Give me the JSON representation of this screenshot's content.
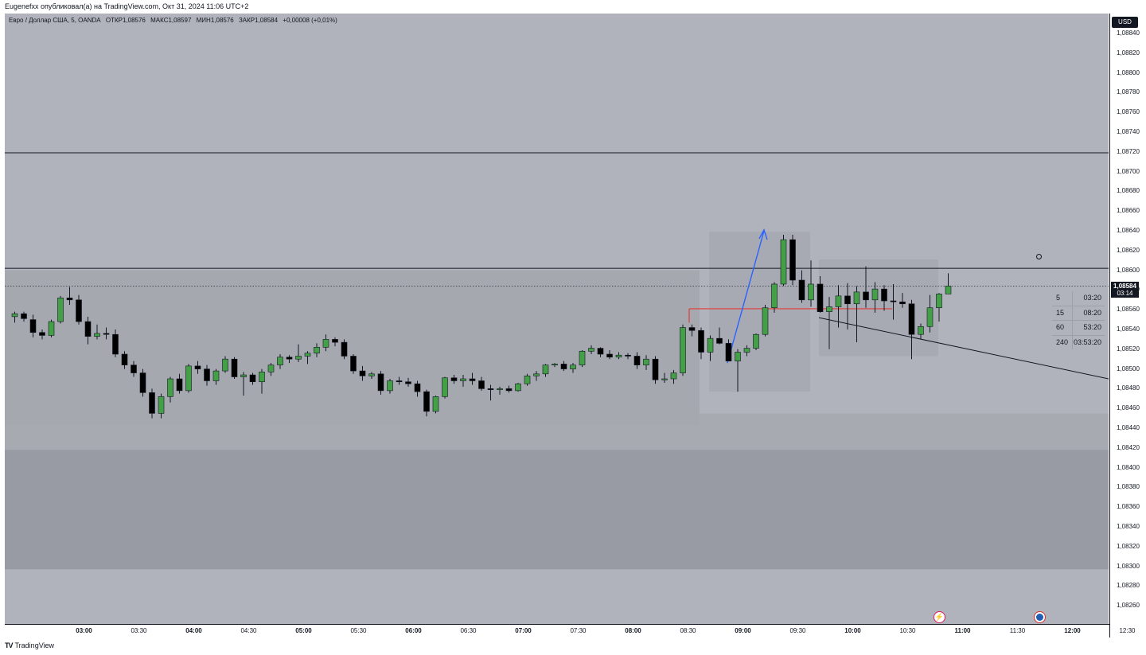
{
  "header": {
    "published": "Eugenefxx опубликовал(а) на TradingView.com, Окт 31, 2024 11:06 UTC+2"
  },
  "legend": {
    "symbol": "Евро / Доллар США, 5, OANDA",
    "open": "ОТКР1,08576",
    "high": "МАКС1,08597",
    "low": "МИН1,08576",
    "close": "ЗАКР1,08584",
    "change": "+0,00008 (+0,01%)"
  },
  "price_axis": {
    "currency": "USD",
    "last_price": "1,08584",
    "countdown": "03:14"
  },
  "timeframes": [
    {
      "tf": "5",
      "time": "03:20"
    },
    {
      "tf": "15",
      "time": "08:20"
    },
    {
      "tf": "60",
      "time": "53:20"
    },
    {
      "tf": "240",
      "time": "03:53:20"
    }
  ],
  "footer": {
    "brand": "TradingView"
  },
  "colors": {
    "bull": "#43a047",
    "bear": "#000000",
    "plot_bg": "#b1b3bc",
    "zone": "#989ba3",
    "box": "#a8aab3",
    "trend_up": "#2962ff",
    "level": "#e53935"
  },
  "chart_data": {
    "type": "candlestick",
    "symbol": "EURUSD",
    "interval": "5",
    "y_ticks": [
      "1,08840",
      "1,08820",
      "1,08800",
      "1,08780",
      "1,08760",
      "1,08740",
      "1,08720",
      "1,08700",
      "1,08680",
      "1,08660",
      "1,08640",
      "1,08620",
      "1,08600",
      "1,08580",
      "1,08560",
      "1,08540",
      "1,08520",
      "1,08500",
      "1,08480",
      "1,08460",
      "1,08440",
      "1,08420",
      "1,08400",
      "1,08380",
      "1,08360",
      "1,08340",
      "1,08320",
      "1,08300",
      "1,08280",
      "1,08260"
    ],
    "ylim": [
      1.0825,
      1.08855
    ],
    "x_ticks": [
      {
        "label": "03:00",
        "i": 4,
        "major": true
      },
      {
        "label": "03:30",
        "i": 10,
        "major": false
      },
      {
        "label": "04:00",
        "i": 16,
        "major": true
      },
      {
        "label": "04:30",
        "i": 22,
        "major": false
      },
      {
        "label": "05:00",
        "i": 28,
        "major": true
      },
      {
        "label": "05:30",
        "i": 34,
        "major": false
      },
      {
        "label": "06:00",
        "i": 40,
        "major": true
      },
      {
        "label": "06:30",
        "i": 46,
        "major": false
      },
      {
        "label": "07:00",
        "i": 52,
        "major": true
      },
      {
        "label": "07:30",
        "i": 58,
        "major": false
      },
      {
        "label": "08:00",
        "i": 64,
        "major": true
      },
      {
        "label": "08:30",
        "i": 70,
        "major": false
      },
      {
        "label": "09:00",
        "i": 76,
        "major": true
      },
      {
        "label": "09:30",
        "i": 82,
        "major": false
      },
      {
        "label": "10:00",
        "i": 88,
        "major": true
      },
      {
        "label": "10:30",
        "i": 94,
        "major": false
      },
      {
        "label": "11:00",
        "i": 100,
        "major": true
      },
      {
        "label": "11:30",
        "i": 106,
        "major": false
      },
      {
        "label": "12:00",
        "i": 112,
        "major": true
      },
      {
        "label": "12:30",
        "i": 118,
        "major": false
      }
    ],
    "ohlc": [
      [
        1.08553,
        1.08558,
        1.08547,
        1.08556
      ],
      [
        1.08556,
        1.08558,
        1.08548,
        1.08551
      ],
      [
        1.0855,
        1.08555,
        1.08532,
        1.08537
      ],
      [
        1.08537,
        1.0854,
        1.0853,
        1.08534
      ],
      [
        1.08534,
        1.0855,
        1.08532,
        1.08548
      ],
      [
        1.08548,
        1.08574,
        1.08546,
        1.08572
      ],
      [
        1.08572,
        1.08583,
        1.08565,
        1.0857
      ],
      [
        1.0857,
        1.08575,
        1.08545,
        1.08548
      ],
      [
        1.08548,
        1.08553,
        1.08525,
        1.08533
      ],
      [
        1.08533,
        1.08545,
        1.0853,
        1.08536
      ],
      [
        1.08536,
        1.08542,
        1.0853,
        1.08535
      ],
      [
        1.08535,
        1.0854,
        1.08512,
        1.08515
      ],
      [
        1.08515,
        1.08518,
        1.085,
        1.08504
      ],
      [
        1.08504,
        1.08508,
        1.08492,
        1.08496
      ],
      [
        1.08496,
        1.085,
        1.08472,
        1.08476
      ],
      [
        1.08476,
        1.0848,
        1.0845,
        1.08455
      ],
      [
        1.08455,
        1.08475,
        1.0845,
        1.08472
      ],
      [
        1.08472,
        1.08492,
        1.08466,
        1.0849
      ],
      [
        1.0849,
        1.08495,
        1.08475,
        1.08478
      ],
      [
        1.08478,
        1.08505,
        1.08476,
        1.08503
      ],
      [
        1.08503,
        1.08508,
        1.08495,
        1.085
      ],
      [
        1.085,
        1.08504,
        1.08483,
        1.08488
      ],
      [
        1.08488,
        1.085,
        1.08484,
        1.08498
      ],
      [
        1.08498,
        1.08513,
        1.08496,
        1.0851
      ],
      [
        1.0851,
        1.08512,
        1.0849,
        1.08492
      ],
      [
        1.08492,
        1.08497,
        1.08473,
        1.08494
      ],
      [
        1.08494,
        1.08496,
        1.08484,
        1.08487
      ],
      [
        1.08487,
        1.085,
        1.08475,
        1.08497
      ],
      [
        1.08497,
        1.08506,
        1.08493,
        1.08504
      ],
      [
        1.08504,
        1.08515,
        1.085,
        1.08512
      ],
      [
        1.08512,
        1.08514,
        1.08506,
        1.0851
      ],
      [
        1.0851,
        1.08525,
        1.08507,
        1.08513
      ],
      [
        1.08513,
        1.08518,
        1.08505,
        1.08516
      ],
      [
        1.08516,
        1.08526,
        1.08512,
        1.08522
      ],
      [
        1.08522,
        1.08535,
        1.08518,
        1.0853
      ],
      [
        1.0853,
        1.08532,
        1.08523,
        1.08527
      ],
      [
        1.08527,
        1.0853,
        1.0851,
        1.08513
      ],
      [
        1.08513,
        1.08515,
        1.08495,
        1.08498
      ],
      [
        1.08498,
        1.08503,
        1.08488,
        1.08493
      ],
      [
        1.08493,
        1.08497,
        1.0849,
        1.08495
      ],
      [
        1.08495,
        1.08498,
        1.08474,
        1.08478
      ],
      [
        1.08478,
        1.0849,
        1.08475,
        1.08488
      ],
      [
        1.08488,
        1.08492,
        1.08484,
        1.08487
      ],
      [
        1.08487,
        1.08491,
        1.08482,
        1.08485
      ],
      [
        1.08485,
        1.08488,
        1.08472,
        1.08477
      ],
      [
        1.08477,
        1.08479,
        1.08452,
        1.08457
      ],
      [
        1.08457,
        1.08473,
        1.08455,
        1.08472
      ],
      [
        1.08472,
        1.08492,
        1.0847,
        1.08491
      ],
      [
        1.08491,
        1.08494,
        1.08485,
        1.08488
      ],
      [
        1.08488,
        1.08494,
        1.08482,
        1.0849
      ],
      [
        1.0849,
        1.08496,
        1.08484,
        1.08488
      ],
      [
        1.08488,
        1.08492,
        1.08478,
        1.0848
      ],
      [
        1.0848,
        1.08484,
        1.08468,
        1.08479
      ],
      [
        1.08479,
        1.08482,
        1.08474,
        1.0848
      ],
      [
        1.0848,
        1.08483,
        1.08476,
        1.08478
      ],
      [
        1.08478,
        1.08486,
        1.08477,
        1.08485
      ],
      [
        1.08485,
        1.08495,
        1.08483,
        1.08493
      ],
      [
        1.08493,
        1.08498,
        1.08488,
        1.08495
      ],
      [
        1.08495,
        1.08505,
        1.08492,
        1.08504
      ],
      [
        1.08504,
        1.08506,
        1.08502,
        1.08505
      ],
      [
        1.08505,
        1.08508,
        1.08498,
        1.085
      ],
      [
        1.085,
        1.08506,
        1.08496,
        1.08504
      ],
      [
        1.08504,
        1.08519,
        1.08502,
        1.08518
      ],
      [
        1.08518,
        1.08524,
        1.08515,
        1.08521
      ],
      [
        1.08521,
        1.08522,
        1.08512,
        1.08515
      ],
      [
        1.08515,
        1.08519,
        1.0851,
        1.08512
      ],
      [
        1.08512,
        1.08517,
        1.0851,
        1.08514
      ],
      [
        1.08514,
        1.08516,
        1.0851,
        1.08513
      ],
      [
        1.08513,
        1.08517,
        1.085,
        1.08504
      ],
      [
        1.08504,
        1.08514,
        1.08499,
        1.0851
      ],
      [
        1.0851,
        1.08513,
        1.08485,
        1.08489
      ],
      [
        1.08489,
        1.08496,
        1.08486,
        1.0849
      ],
      [
        1.0849,
        1.08499,
        1.08485,
        1.08496
      ],
      [
        1.08496,
        1.08545,
        1.08493,
        1.08542
      ],
      [
        1.08542,
        1.08545,
        1.08533,
        1.08539
      ],
      [
        1.08539,
        1.08542,
        1.0851,
        1.08517
      ],
      [
        1.08517,
        1.08534,
        1.08508,
        1.08531
      ],
      [
        1.08531,
        1.08542,
        1.08525,
        1.08526
      ],
      [
        1.08526,
        1.0853,
        1.08508,
        1.08508
      ],
      [
        1.08508,
        1.0852,
        1.08477,
        1.08517
      ],
      [
        1.08517,
        1.08524,
        1.08513,
        1.08521
      ],
      [
        1.08521,
        1.08536,
        1.08519,
        1.08535
      ],
      [
        1.08535,
        1.08565,
        1.08533,
        1.08562
      ],
      [
        1.08562,
        1.08588,
        1.08557,
        1.08586
      ],
      [
        1.08586,
        1.08636,
        1.08584,
        1.08631
      ],
      [
        1.08631,
        1.08636,
        1.08585,
        1.0859
      ],
      [
        1.0859,
        1.086,
        1.08567,
        1.0857
      ],
      [
        1.0857,
        1.0861,
        1.08563,
        1.08586
      ],
      [
        1.08586,
        1.08594,
        1.08557,
        1.08558
      ],
      [
        1.08558,
        1.08573,
        1.0852,
        1.08563
      ],
      [
        1.08563,
        1.08585,
        1.08542,
        1.08574
      ],
      [
        1.08574,
        1.08587,
        1.0854,
        1.08566
      ],
      [
        1.08566,
        1.08584,
        1.08527,
        1.08578
      ],
      [
        1.08578,
        1.08604,
        1.08562,
        1.0857
      ],
      [
        1.0857,
        1.08588,
        1.08557,
        1.08581
      ],
      [
        1.08581,
        1.08585,
        1.08559,
        1.08569
      ],
      [
        1.08569,
        1.08586,
        1.0855,
        1.08568
      ],
      [
        1.08568,
        1.08577,
        1.08562,
        1.08566
      ],
      [
        1.08566,
        1.0857,
        1.0851,
        1.08535
      ],
      [
        1.08535,
        1.08546,
        1.0853,
        1.08543
      ],
      [
        1.08543,
        1.08575,
        1.08537,
        1.08562
      ],
      [
        1.08562,
        1.08577,
        1.08548,
        1.08576
      ],
      [
        1.08576,
        1.08597,
        1.08576,
        1.08584
      ]
    ]
  }
}
